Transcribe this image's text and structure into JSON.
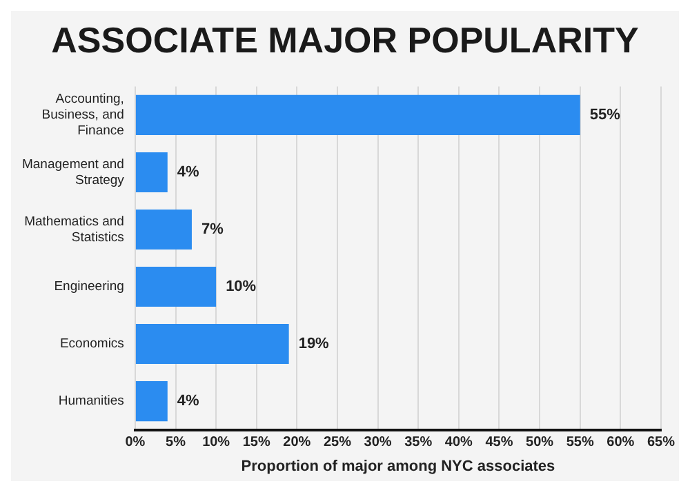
{
  "chart_data": {
    "type": "bar",
    "orientation": "horizontal",
    "title": "ASSOCIATE MAJOR POPULARITY",
    "xlabel": "Proportion of major among NYC associates",
    "categories": [
      "Accounting, Business, and Finance",
      "Management and Strategy",
      "Mathematics and Statistics",
      "Engineering",
      "Economics",
      "Humanities"
    ],
    "values": [
      55,
      4,
      7,
      10,
      19,
      4
    ],
    "color": "#2b8cf0",
    "value_labels": [
      "55%",
      "4%",
      "7%",
      "10%",
      "19%",
      "4%"
    ],
    "xlim": [
      0,
      65
    ],
    "xticks": [
      {
        "value": 0,
        "label": "0%"
      },
      {
        "value": 5,
        "label": "5%"
      },
      {
        "value": 10,
        "label": "10%"
      },
      {
        "value": 15,
        "label": "15%"
      },
      {
        "value": 20,
        "label": "20%"
      },
      {
        "value": 25,
        "label": "25%"
      },
      {
        "value": 30,
        "label": "30%"
      },
      {
        "value": 35,
        "label": "35%"
      },
      {
        "value": 40,
        "label": "40%"
      },
      {
        "value": 45,
        "label": "45%"
      },
      {
        "value": 50,
        "label": "50%"
      },
      {
        "value": 55,
        "label": "55%"
      },
      {
        "value": 60,
        "label": "60%"
      },
      {
        "value": 65,
        "label": "65%"
      }
    ],
    "grid": "x",
    "legend": false
  }
}
